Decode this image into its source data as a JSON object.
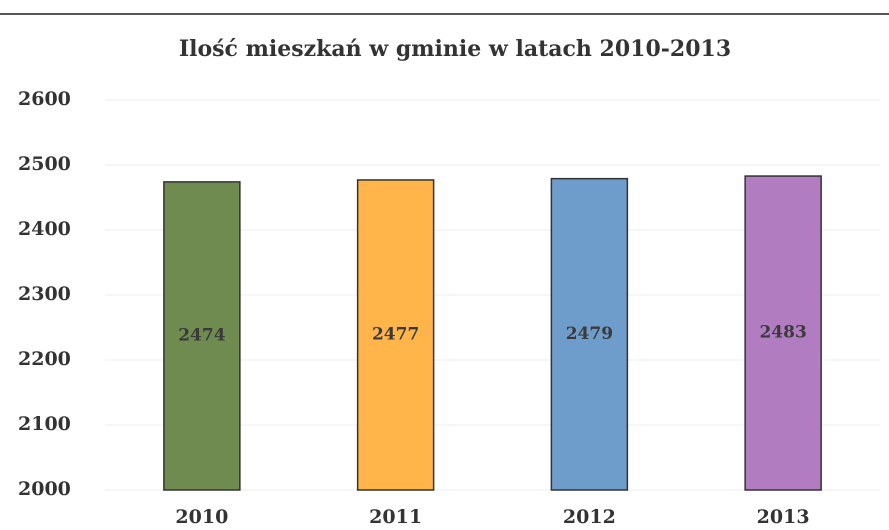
{
  "chart_data": {
    "type": "bar",
    "title": "Ilość mieszkań w gminie w latach 2010-2013",
    "categories": [
      "2010",
      "2011",
      "2012",
      "2013"
    ],
    "values": [
      2474,
      2477,
      2479,
      2483
    ],
    "colors": [
      "#6f8b4f",
      "#ffb54a",
      "#6f9dcb",
      "#b27cc1"
    ],
    "ylim": [
      2000,
      2600
    ],
    "yticks": [
      2000,
      2100,
      2200,
      2300,
      2400,
      2500,
      2600
    ],
    "grid": true
  }
}
